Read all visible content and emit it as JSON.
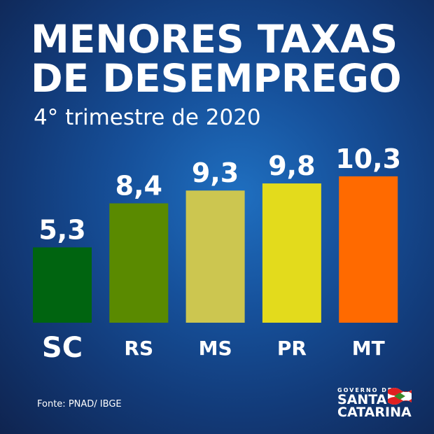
{
  "title_line1": "MENORES TAXAS",
  "title_line2": "DE DESEMPREGO",
  "subtitle": "4° trimestre de 2020",
  "source": "Fonte: PNAD/ IBGE",
  "logo": {
    "line1": "GOVERNO DE",
    "line2": "SANTA",
    "line3": "CATARINA"
  },
  "chart_data": {
    "type": "bar",
    "title": "MENORES TAXAS DE DESEMPREGO",
    "subtitle": "4° trimestre de 2020",
    "categories": [
      "SC",
      "RS",
      "MS",
      "PR",
      "MT"
    ],
    "values": [
      5.3,
      8.4,
      9.3,
      9.8,
      10.3
    ],
    "value_labels": [
      "5,3",
      "8,4",
      "9,3",
      "9,8",
      "10,3"
    ],
    "colors": [
      "#006410",
      "#5a8a00",
      "#ccc650",
      "#e3db1c",
      "#ff6a00"
    ],
    "xlabel": "",
    "ylabel": "",
    "ylim": [
      0,
      10.3
    ],
    "grid": false
  }
}
